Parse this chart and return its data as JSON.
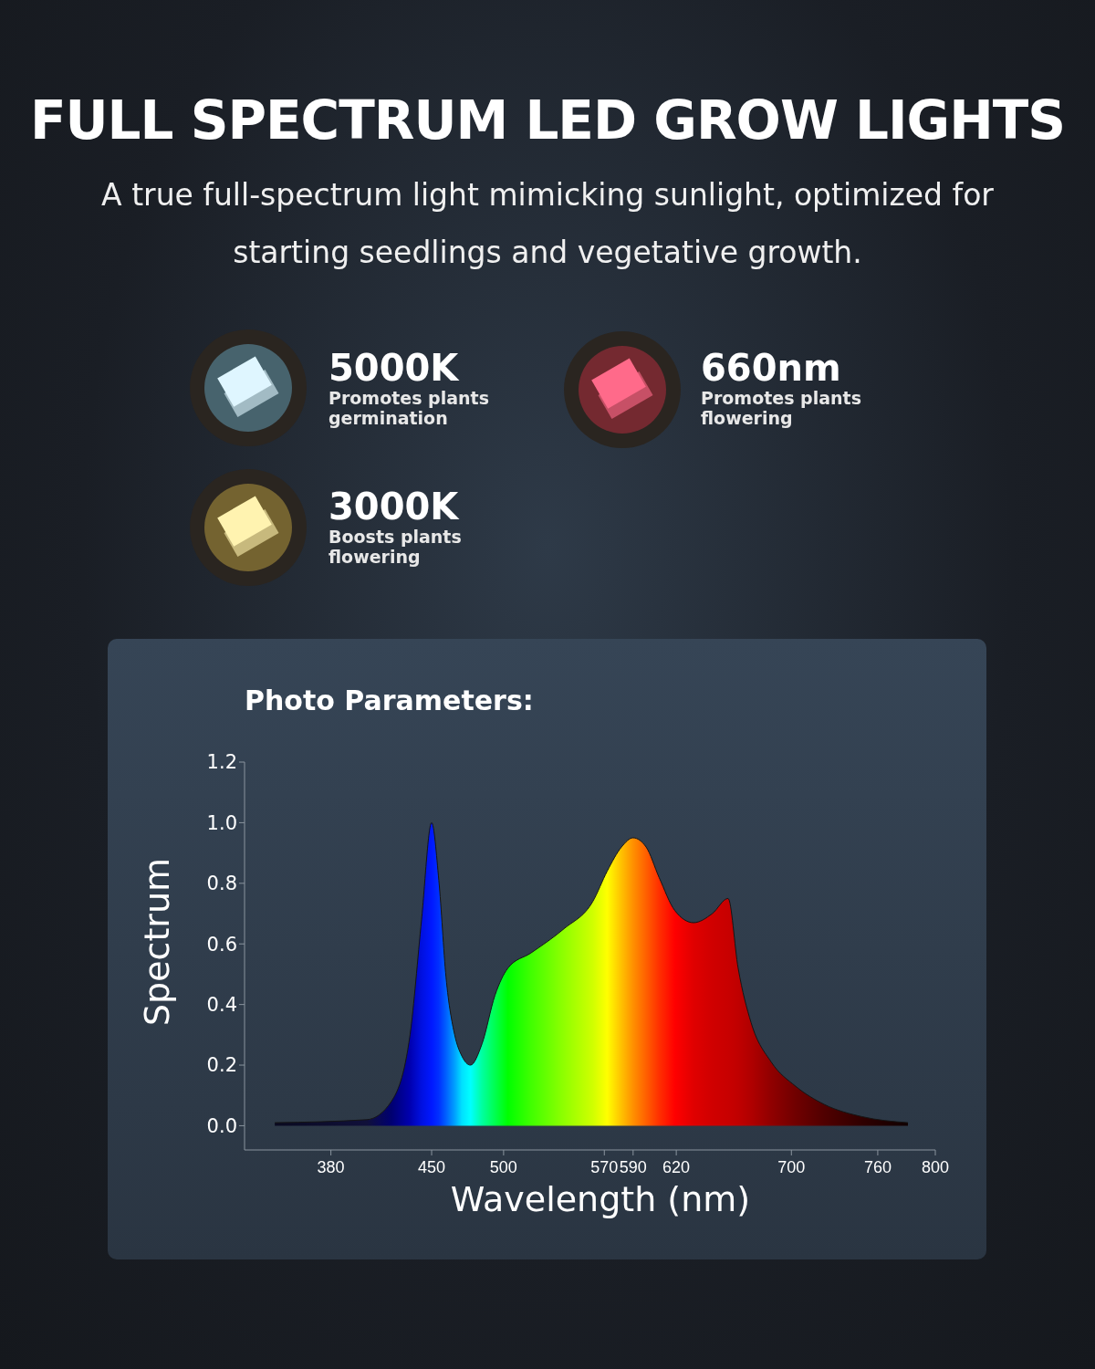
{
  "chart_data": {
    "type": "area",
    "title": "FULL SPECTRUM LED GROW LIGHTS",
    "subtitle": "A true full-spectrum light mimicking sunlight, optimized for starting seedlings and vegetative growth.",
    "xlabel": "Wavelength (nm)",
    "ylabel": "Spectrum",
    "annotations": [
      "Photo Parameters:",
      "5000K",
      "Promotes plants germination",
      "660nm",
      "Promotes plants flowering",
      "3000K",
      "Boosts plants flowering"
    ],
    "x": [
      341,
      405,
      422,
      435,
      443,
      450,
      455,
      460,
      466,
      471,
      477,
      485,
      494,
      503,
      519,
      542,
      562,
      572,
      582,
      590,
      599,
      608,
      619,
      632,
      645,
      656,
      663,
      672,
      686,
      703,
      723,
      749,
      781
    ],
    "series": [
      {
        "values": [
          0.01,
          0.02,
          0.08,
          0.3,
          0.68,
          1.0,
          0.81,
          0.49,
          0.3,
          0.23,
          0.2,
          0.27,
          0.43,
          0.52,
          0.57,
          0.65,
          0.74,
          0.84,
          0.92,
          0.95,
          0.92,
          0.82,
          0.71,
          0.67,
          0.7,
          0.75,
          0.52,
          0.34,
          0.21,
          0.13,
          0.07,
          0.03,
          0.01
        ],
        "colors": [
          "#0a0a20",
          "#10103a",
          "#000070",
          "#0000b0",
          "#0010e0",
          "#0018ff",
          "#0030ff",
          "#0060ff",
          "#00a0ff",
          "#00e0ff",
          "#00ffff",
          "#00ffa0",
          "#00ff50",
          "#00ff00",
          "#40ff00",
          "#90ff00",
          "#d0ff00",
          "#ffff00",
          "#ffc000",
          "#ff9000",
          "#ff6000",
          "#ff3000",
          "#ff0000",
          "#e00000",
          "#d00000",
          "#c80000",
          "#c00000",
          "#b00000",
          "#900000",
          "#700000",
          "#500000",
          "#300000",
          "#100000"
        ]
      }
    ],
    "xlim": [
      320,
      800
    ],
    "xticks": [
      380,
      450,
      500,
      570,
      590,
      620,
      700,
      760,
      800
    ],
    "ylim": [
      -0.08,
      1.2
    ],
    "yticks": [
      {
        "value": 0,
        "label": "0.0"
      },
      {
        "value": 0.2,
        "label": "0.2"
      },
      {
        "value": 0.4,
        "label": "0.4"
      },
      {
        "value": 0.6,
        "label": "0.6"
      },
      {
        "value": 0.8,
        "label": "0.8"
      },
      {
        "value": 1.0,
        "label": "1.0"
      },
      {
        "value": 1.2,
        "label": "1.2"
      }
    ]
  }
}
